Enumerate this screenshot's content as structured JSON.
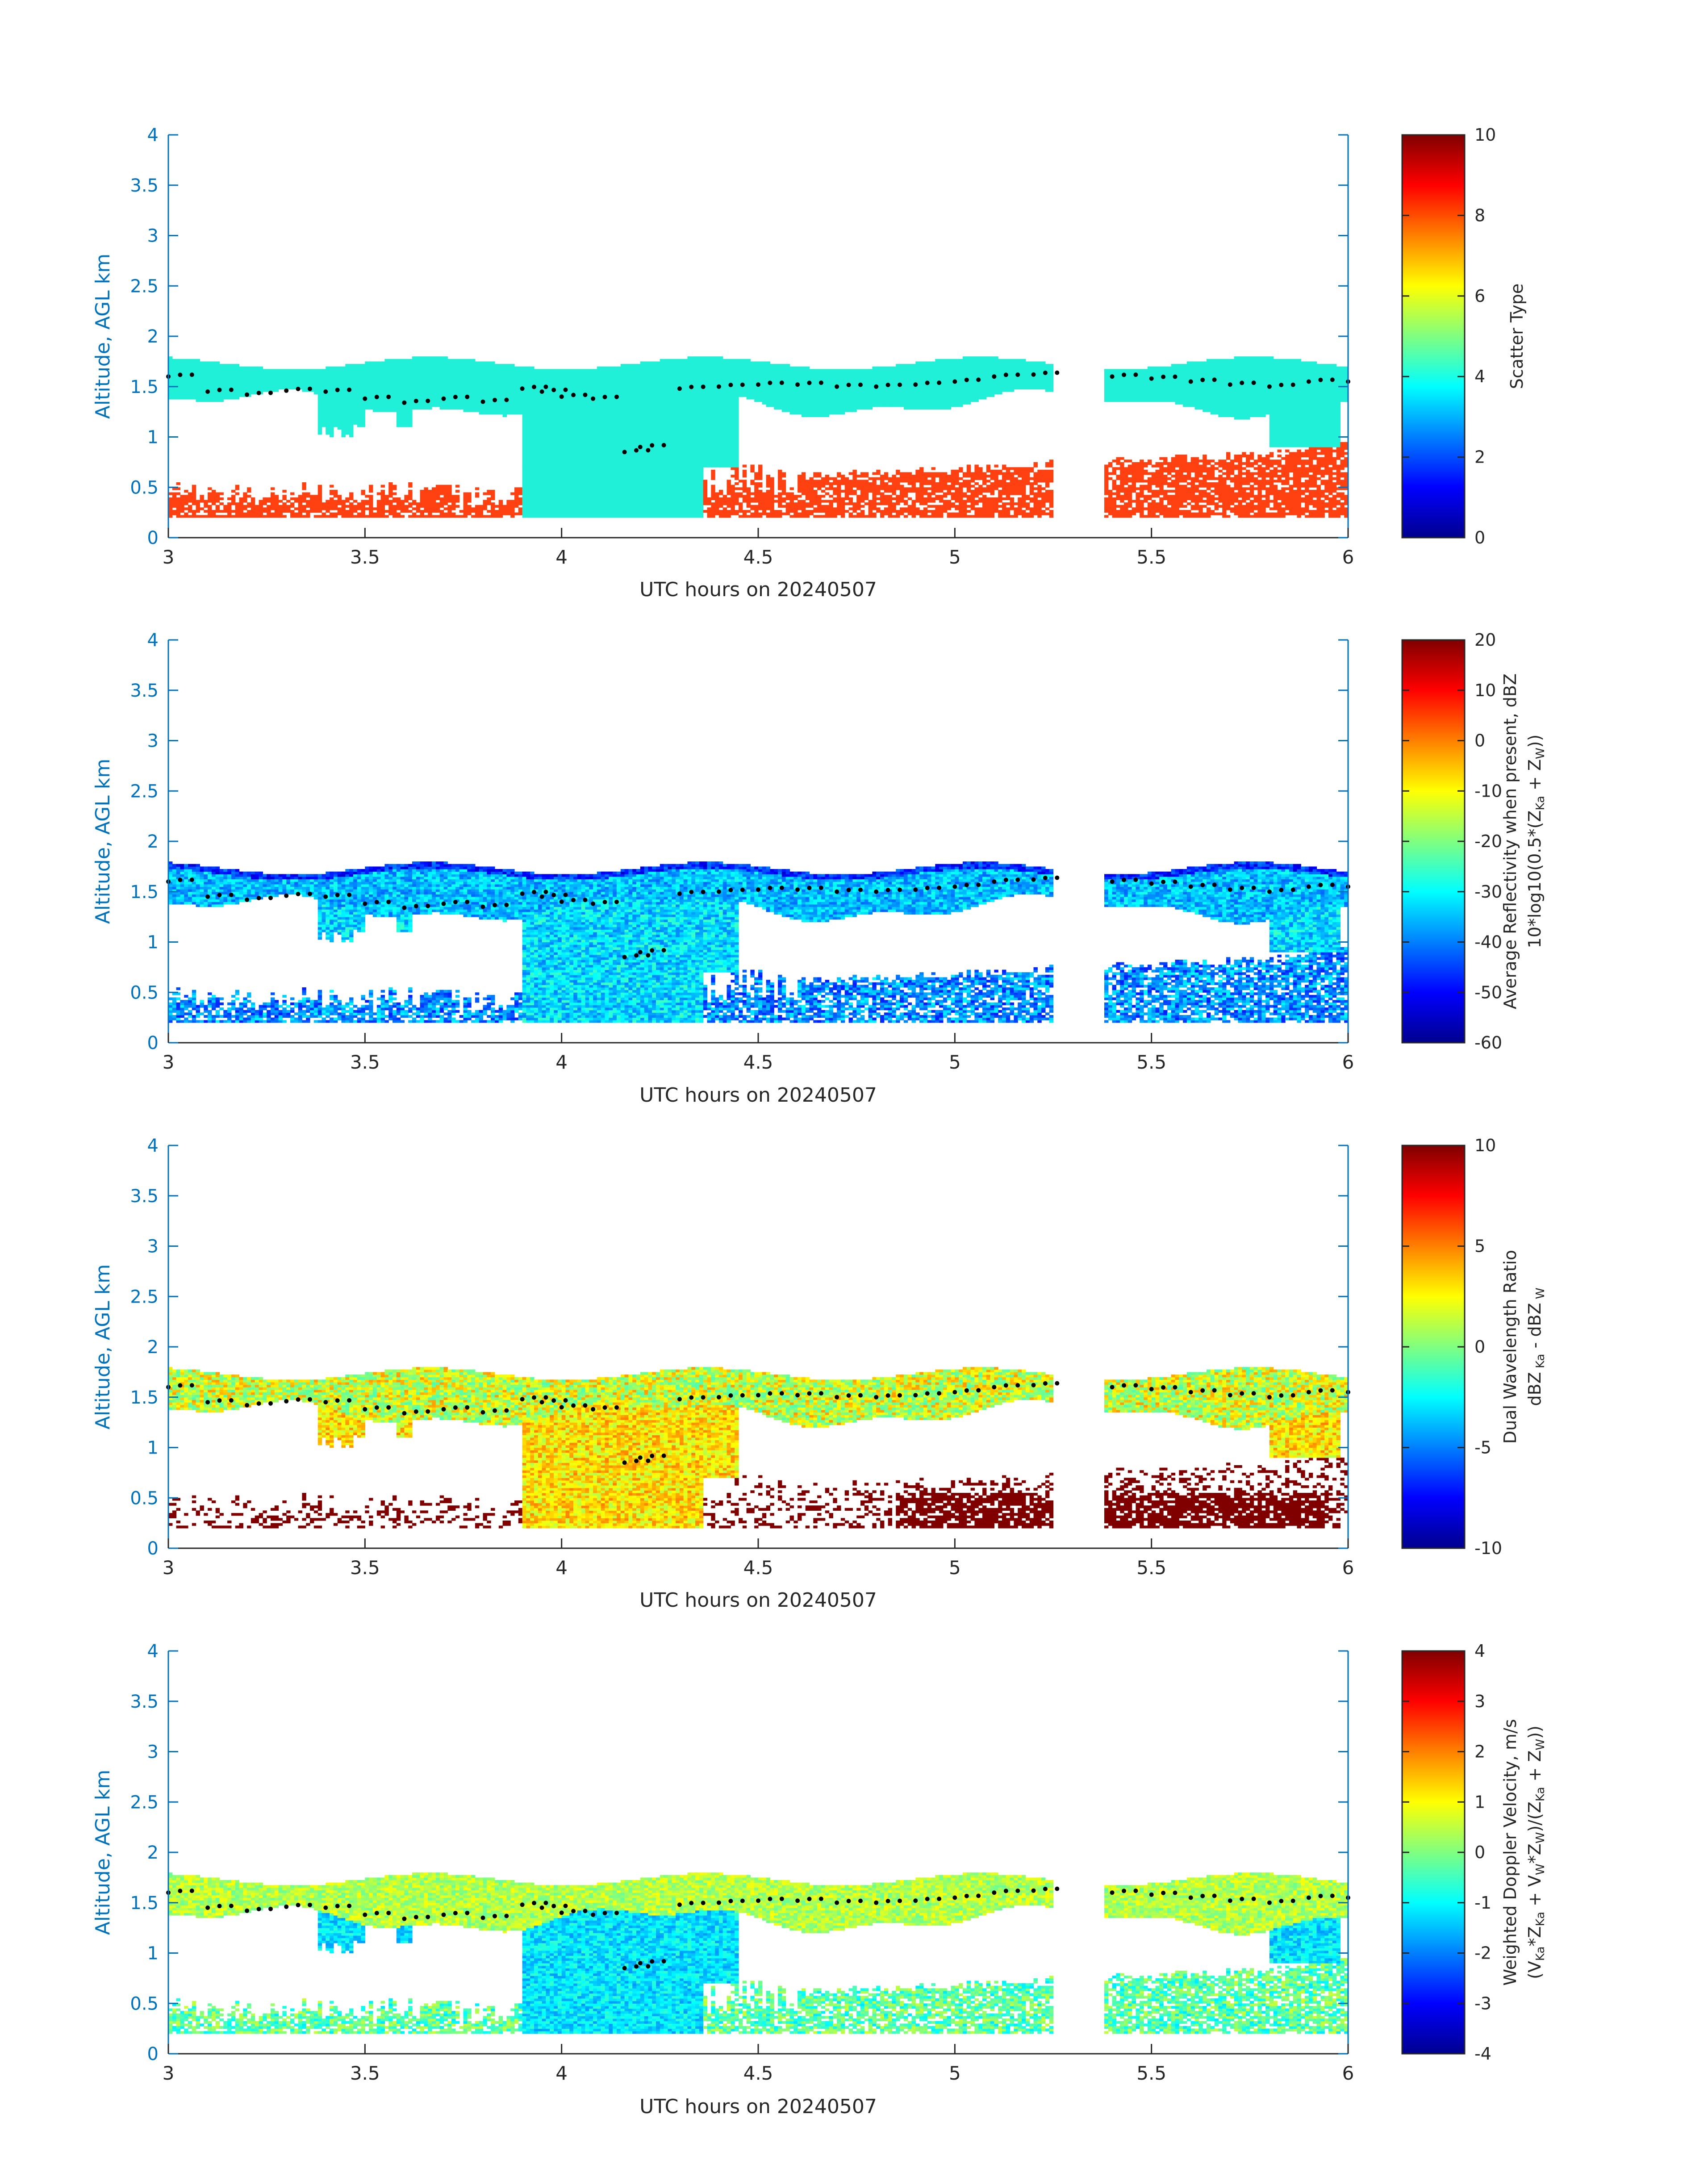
{
  "chart_data": [
    {
      "type": "heatmap",
      "xlabel": "UTC hours on 20240507",
      "ylabel": "Altitude, AGL km",
      "xlim": [
        3,
        6
      ],
      "ylim": [
        0,
        4
      ],
      "xticks": [
        "3",
        "3.5",
        "4",
        "4.5",
        "5",
        "5.5",
        "6"
      ],
      "yticks": [
        "0",
        "0.5",
        "1",
        "1.5",
        "2",
        "2.5",
        "3",
        "3.5",
        "4"
      ],
      "colorbar": {
        "label_lines": [
          "Scatter Type"
        ],
        "ticks": [
          "0",
          "2",
          "4",
          "6",
          "8",
          "10"
        ],
        "range": [
          0,
          10
        ],
        "colormap": "jet"
      },
      "fields": {
        "cloud_value": 4,
        "precip_value": 9,
        "layer_base_km": 1.3,
        "layer_top_km": 1.72,
        "precip_top_km": 0.55
      }
    },
    {
      "type": "heatmap",
      "xlabel": "UTC hours on 20240507",
      "ylabel": "Altitude, AGL km",
      "xlim": [
        3,
        6
      ],
      "ylim": [
        0,
        4
      ],
      "xticks": [
        "3",
        "3.5",
        "4",
        "4.5",
        "5",
        "5.5",
        "6"
      ],
      "yticks": [
        "0",
        "0.5",
        "1",
        "1.5",
        "2",
        "2.5",
        "3",
        "3.5",
        "4"
      ],
      "colorbar": {
        "label_lines": [
          "Average Reflectivity when present, dBZ",
          "10*log10(0.5*(Z_Ka + Z_W))"
        ],
        "ticks": [
          "-60",
          "-50",
          "-40",
          "-30",
          "-20",
          "-10",
          "0",
          "10",
          "20"
        ],
        "range": [
          -60,
          20
        ],
        "colormap": "jet"
      }
    },
    {
      "type": "heatmap",
      "xlabel": "UTC hours on 20240507",
      "ylabel": "Altitude, AGL km",
      "xlim": [
        3,
        6
      ],
      "ylim": [
        0,
        4
      ],
      "xticks": [
        "3",
        "3.5",
        "4",
        "4.5",
        "5",
        "5.5",
        "6"
      ],
      "yticks": [
        "0",
        "0.5",
        "1",
        "1.5",
        "2",
        "2.5",
        "3",
        "3.5",
        "4"
      ],
      "colorbar": {
        "label_lines": [
          "Dual Wavelength Ratio",
          "dBZ Ka - dBZ W"
        ],
        "ticks": [
          "-10",
          "-5",
          "0",
          "5",
          "10"
        ],
        "range": [
          -10,
          10
        ],
        "colormap": "jet"
      }
    },
    {
      "type": "heatmap",
      "xlabel": "UTC hours on 20240507",
      "ylabel": "Altitude, AGL km",
      "xlim": [
        3,
        6
      ],
      "ylim": [
        0,
        4
      ],
      "xticks": [
        "3",
        "3.5",
        "4",
        "4.5",
        "5",
        "5.5",
        "6"
      ],
      "yticks": [
        "0",
        "0.5",
        "1",
        "1.5",
        "2",
        "2.5",
        "3",
        "3.5",
        "4"
      ],
      "colorbar": {
        "label_lines": [
          "Weighted Doppler Velocity, m/s",
          "(V_Ka*Z_Ka + V_W*Z_W)/(Z_Ka + Z_W))"
        ],
        "ticks": [
          "-4",
          "-3",
          "-2",
          "-1",
          "0",
          "1",
          "2",
          "3",
          "4"
        ],
        "range": [
          -4,
          4
        ],
        "colormap": "jet"
      }
    }
  ],
  "data_gaps_utc": [
    [
      5.25,
      5.38
    ]
  ],
  "cloud_base_markers_km": [
    {
      "x": 3.0,
      "y": 1.6
    },
    {
      "x": 3.1,
      "y": 1.45
    },
    {
      "x": 3.2,
      "y": 1.42
    },
    {
      "x": 3.3,
      "y": 1.46
    },
    {
      "x": 3.4,
      "y": 1.45
    },
    {
      "x": 3.5,
      "y": 1.38
    },
    {
      "x": 3.6,
      "y": 1.34
    },
    {
      "x": 3.7,
      "y": 1.38
    },
    {
      "x": 3.8,
      "y": 1.35
    },
    {
      "x": 3.9,
      "y": 1.48
    },
    {
      "x": 3.95,
      "y": 1.45
    },
    {
      "x": 4.0,
      "y": 1.4
    },
    {
      "x": 4.08,
      "y": 1.38
    },
    {
      "x": 4.16,
      "y": 0.85
    },
    {
      "x": 4.2,
      "y": 0.9
    },
    {
      "x": 4.3,
      "y": 1.48
    },
    {
      "x": 4.4,
      "y": 1.5
    },
    {
      "x": 4.5,
      "y": 1.52
    },
    {
      "x": 4.6,
      "y": 1.52
    },
    {
      "x": 4.7,
      "y": 1.5
    },
    {
      "x": 4.8,
      "y": 1.5
    },
    {
      "x": 4.9,
      "y": 1.52
    },
    {
      "x": 5.0,
      "y": 1.55
    },
    {
      "x": 5.1,
      "y": 1.6
    },
    {
      "x": 5.2,
      "y": 1.62
    },
    {
      "x": 5.4,
      "y": 1.6
    },
    {
      "x": 5.5,
      "y": 1.58
    },
    {
      "x": 5.6,
      "y": 1.55
    },
    {
      "x": 5.7,
      "y": 1.52
    },
    {
      "x": 5.8,
      "y": 1.5
    },
    {
      "x": 5.9,
      "y": 1.55
    },
    {
      "x": 6.0,
      "y": 1.55
    }
  ]
}
